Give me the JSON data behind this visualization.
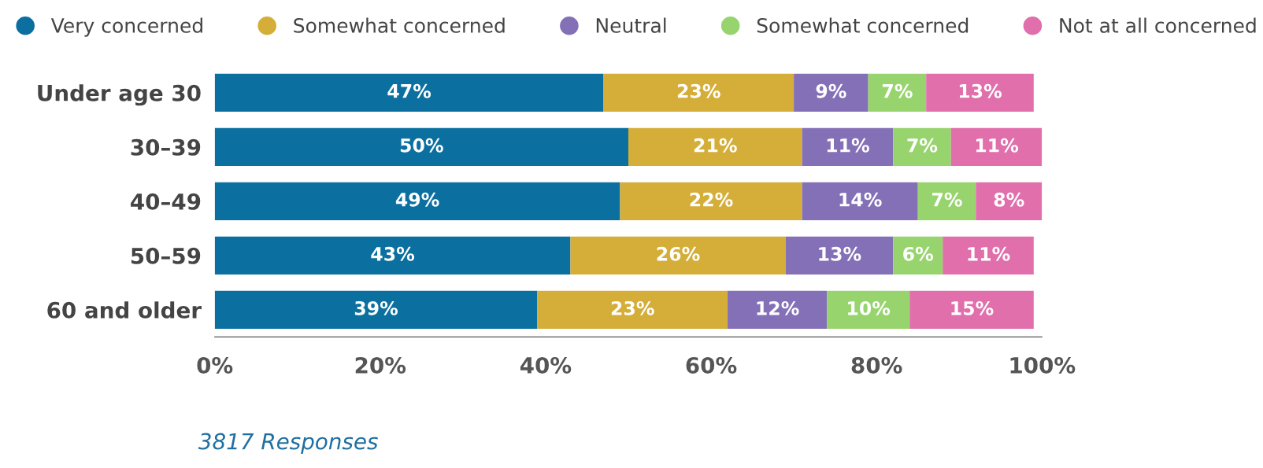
{
  "chart_data": {
    "type": "bar",
    "orientation": "horizontal",
    "stacked": true,
    "categories": [
      "Under age 30",
      "30–39",
      "40–49",
      "50–59",
      "60 and older"
    ],
    "series": [
      {
        "name": "Very concerned",
        "color": "#0b6fa0",
        "values": [
          47,
          50,
          49,
          43,
          39
        ],
        "value_labels": [
          "47%",
          "50%",
          "49%",
          "43%",
          "39%"
        ]
      },
      {
        "name": "Somewhat concerned",
        "color": "#d4ae38",
        "values": [
          23,
          21,
          22,
          26,
          23
        ],
        "value_labels": [
          "23%",
          "21%",
          "22%",
          "26%",
          "23%"
        ]
      },
      {
        "name": "Neutral",
        "color": "#8470b6",
        "values": [
          9,
          11,
          14,
          13,
          12
        ],
        "value_labels": [
          "9%",
          "11%",
          "14%",
          "13%",
          "12%"
        ]
      },
      {
        "name": "Somewhat concerned",
        "color": "#98d46e",
        "values": [
          7,
          7,
          7,
          6,
          10
        ],
        "value_labels": [
          "7%",
          "7%",
          "7%",
          "6%",
          "10%"
        ]
      },
      {
        "name": "Not at all concerned",
        "color": "#e06fac",
        "values": [
          13,
          11,
          8,
          11,
          15
        ],
        "value_labels": [
          "13%",
          "11%",
          "8%",
          "11%",
          "15%"
        ]
      }
    ],
    "xlim": [
      0,
      100
    ],
    "xticks": [
      {
        "value": 0,
        "label": "0%"
      },
      {
        "value": 20,
        "label": "20%"
      },
      {
        "value": 40,
        "label": "40%"
      },
      {
        "value": 60,
        "label": "60%"
      },
      {
        "value": 80,
        "label": "80%"
      },
      {
        "value": 100,
        "label": "100%"
      }
    ],
    "legend": "top",
    "grid": false,
    "annotations": [
      "3817 Responses"
    ]
  }
}
